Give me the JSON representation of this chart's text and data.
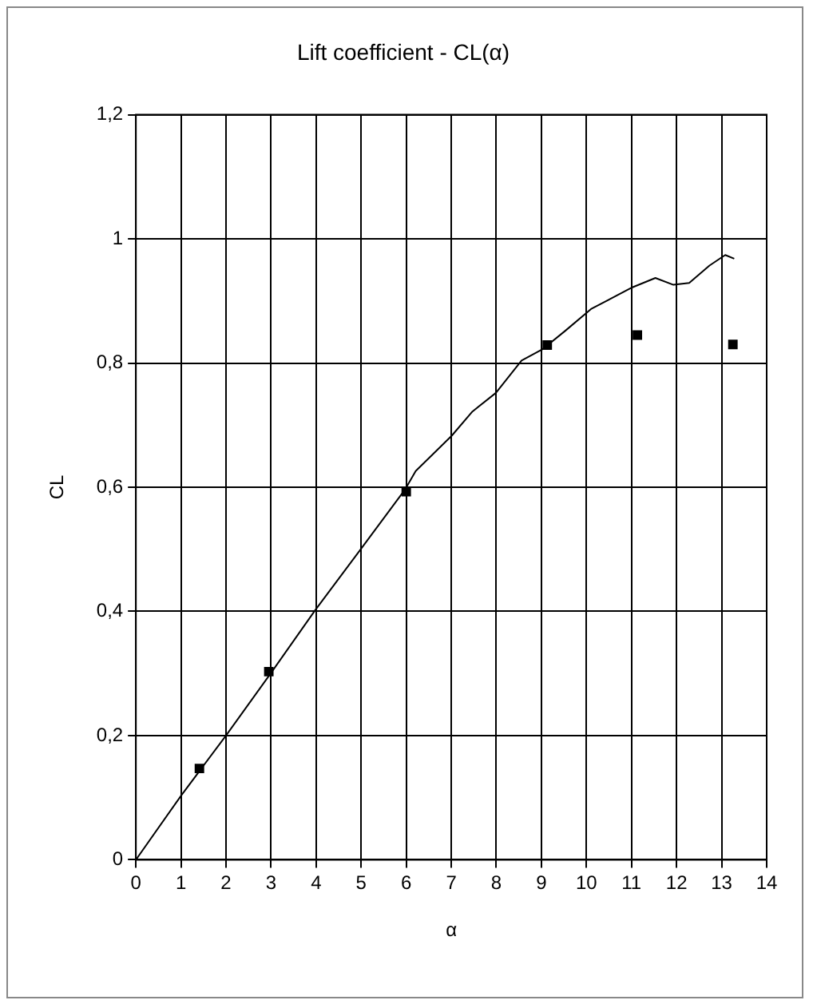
{
  "chart_data": {
    "type": "line",
    "title": "Lift coefficient - CL(α)",
    "xlabel": "α",
    "ylabel": "CL",
    "series": [
      {
        "color": "#000000",
        "marker": "none",
        "x": [
          0,
          1.01,
          2,
          3.01,
          3.98,
          5.01,
          5.98,
          6.21,
          7.01,
          7.47,
          7.99,
          8.56,
          9.02,
          9.53,
          10.1,
          11.02,
          11.53,
          11.93,
          12.28,
          12.73,
          13.08,
          13.28
        ],
        "values": [
          0,
          0.104,
          0.2,
          0.302,
          0.402,
          0.502,
          0.597,
          0.626,
          0.683,
          0.722,
          0.752,
          0.804,
          0.822,
          0.852,
          0.887,
          0.922,
          0.937,
          0.926,
          0.929,
          0.957,
          0.974,
          0.968
        ]
      },
      {
        "type": "scatter",
        "color": "#000000",
        "marker": "square",
        "x": [
          1.41,
          2.95,
          6.0,
          9.13,
          11.13,
          13.25
        ],
        "values": [
          0.147,
          0.303,
          0.593,
          0.829,
          0.845,
          0.83
        ]
      }
    ],
    "xlim": [
      0,
      14
    ],
    "xticks": [
      0,
      1,
      2,
      3,
      4,
      5,
      6,
      7,
      8,
      9,
      10,
      11,
      12,
      13,
      14
    ],
    "ylim": [
      0,
      1.2
    ],
    "yticks": [
      {
        "value": 0,
        "label": "0"
      },
      {
        "value": 0.2,
        "label": "0,2"
      },
      {
        "value": 0.4,
        "label": "0,4"
      },
      {
        "value": 0.6,
        "label": "0,6"
      },
      {
        "value": 0.8,
        "label": "0,8"
      },
      {
        "value": 1,
        "label": "1"
      },
      {
        "value": 1.2,
        "label": "1,2"
      }
    ],
    "grid": true,
    "legend": false
  }
}
